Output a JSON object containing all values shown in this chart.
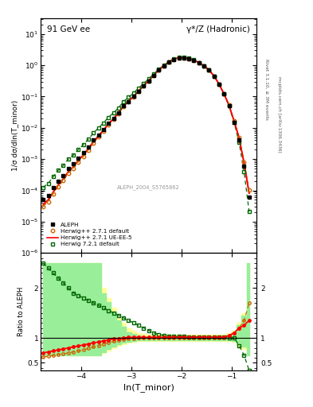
{
  "title_left": "91 GeV ee",
  "title_right": "γ*/Z (Hadronic)",
  "ylabel_main": "1/σ dσ/dln(T_minor)",
  "ylabel_ratio": "Ratio to ALEPH",
  "xlabel": "ln(T_​minor)",
  "right_label_top": "Rivet 3.1.10, ≥ 3M events",
  "right_label_bot": "mcplots.cern.ch [arXiv:1306.3436]",
  "ref_label": "ALEPH_2004_S5765862",
  "xlim": [
    -4.8,
    -0.5
  ],
  "ylim_main_log": [
    -6,
    1.5
  ],
  "ylim_ratio": [
    0.35,
    2.7
  ],
  "background_color": "#ffffff",
  "aleph_color": "#000000",
  "herwig_default_color": "#cc6600",
  "herwig_ueee5_color": "#ff0000",
  "herwig721_color": "#006600",
  "yellow_band_color": "#ffff99",
  "green_band_color": "#99ee99",
  "aleph_x": [
    -4.75,
    -4.65,
    -4.55,
    -4.45,
    -4.35,
    -4.25,
    -4.15,
    -4.05,
    -3.95,
    -3.85,
    -3.75,
    -3.65,
    -3.55,
    -3.45,
    -3.35,
    -3.25,
    -3.15,
    -3.05,
    -2.95,
    -2.85,
    -2.75,
    -2.65,
    -2.55,
    -2.45,
    -2.35,
    -2.25,
    -2.15,
    -2.05,
    -1.95,
    -1.85,
    -1.75,
    -1.65,
    -1.55,
    -1.45,
    -1.35,
    -1.25,
    -1.15,
    -1.05,
    -0.95,
    -0.85,
    -0.75,
    -0.65
  ],
  "aleph_y": [
    5e-05,
    7e-05,
    0.00012,
    0.0002,
    0.0003,
    0.0005,
    0.0007,
    0.0011,
    0.0016,
    0.0025,
    0.004,
    0.006,
    0.009,
    0.014,
    0.02,
    0.03,
    0.05,
    0.07,
    0.1,
    0.15,
    0.22,
    0.32,
    0.48,
    0.7,
    0.95,
    1.25,
    1.55,
    1.75,
    1.75,
    1.65,
    1.45,
    1.2,
    0.95,
    0.7,
    0.45,
    0.25,
    0.12,
    0.05,
    0.015,
    0.004,
    0.0006,
    6e-05
  ],
  "hd_ratio": [
    0.62,
    0.63,
    0.65,
    0.67,
    0.68,
    0.7,
    0.72,
    0.74,
    0.76,
    0.79,
    0.82,
    0.85,
    0.88,
    0.91,
    0.93,
    0.96,
    0.97,
    0.98,
    0.99,
    1.0,
    1.0,
    1.0,
    1.0,
    1.0,
    1.0,
    1.0,
    1.0,
    1.0,
    1.0,
    1.0,
    1.0,
    1.0,
    1.0,
    1.0,
    1.0,
    1.0,
    1.0,
    1.05,
    1.1,
    1.2,
    1.35,
    1.7
  ],
  "hueee5_ratio": [
    0.7,
    0.72,
    0.74,
    0.76,
    0.78,
    0.8,
    0.82,
    0.84,
    0.86,
    0.88,
    0.9,
    0.92,
    0.94,
    0.96,
    0.98,
    0.99,
    1.0,
    1.01,
    1.01,
    1.01,
    1.01,
    1.01,
    1.01,
    1.01,
    1.01,
    1.01,
    1.01,
    1.01,
    1.01,
    1.01,
    1.01,
    1.01,
    1.01,
    1.01,
    1.01,
    1.01,
    1.01,
    1.05,
    1.1,
    1.2,
    1.25,
    1.35
  ],
  "h721_ratio": [
    2.5,
    2.4,
    2.3,
    2.2,
    2.1,
    2.0,
    1.9,
    1.85,
    1.8,
    1.75,
    1.7,
    1.65,
    1.6,
    1.55,
    1.5,
    1.45,
    1.4,
    1.35,
    1.3,
    1.25,
    1.2,
    1.15,
    1.1,
    1.07,
    1.05,
    1.04,
    1.03,
    1.03,
    1.03,
    1.02,
    1.02,
    1.02,
    1.02,
    1.02,
    1.01,
    1.01,
    1.01,
    1.0,
    1.0,
    0.85,
    0.65,
    0.35
  ],
  "yellow_lo": [
    0.65,
    0.65,
    0.65,
    0.65,
    0.65,
    0.65,
    0.65,
    0.65,
    0.65,
    0.65,
    0.65,
    0.65,
    0.7,
    0.75,
    0.8,
    0.85,
    0.88,
    0.9,
    0.92,
    0.94,
    0.94,
    0.94,
    0.94,
    0.94,
    0.94,
    0.94,
    0.94,
    0.94,
    0.94,
    0.94,
    0.94,
    0.94,
    0.94,
    0.94,
    0.94,
    0.94,
    0.94,
    0.94,
    0.92,
    0.85,
    0.78,
    0.65
  ],
  "yellow_hi": [
    2.5,
    2.5,
    2.5,
    2.5,
    2.5,
    2.5,
    2.5,
    2.5,
    2.5,
    2.5,
    2.5,
    2.5,
    2.0,
    1.8,
    1.6,
    1.4,
    1.3,
    1.2,
    1.15,
    1.1,
    1.08,
    1.06,
    1.06,
    1.06,
    1.06,
    1.06,
    1.06,
    1.06,
    1.06,
    1.06,
    1.06,
    1.06,
    1.06,
    1.06,
    1.06,
    1.06,
    1.06,
    1.1,
    1.15,
    1.3,
    1.5,
    2.5
  ],
  "green_lo": [
    0.65,
    0.65,
    0.65,
    0.65,
    0.65,
    0.65,
    0.65,
    0.65,
    0.65,
    0.65,
    0.65,
    0.65,
    0.72,
    0.78,
    0.83,
    0.87,
    0.9,
    0.92,
    0.93,
    0.95,
    0.96,
    0.96,
    0.96,
    0.96,
    0.96,
    0.96,
    0.96,
    0.96,
    0.96,
    0.96,
    0.96,
    0.96,
    0.96,
    0.96,
    0.96,
    0.96,
    0.96,
    0.96,
    0.94,
    0.88,
    0.82,
    0.65
  ],
  "green_hi": [
    2.5,
    2.5,
    2.5,
    2.5,
    2.5,
    2.5,
    2.5,
    2.5,
    2.5,
    2.5,
    2.5,
    2.5,
    1.9,
    1.72,
    1.52,
    1.35,
    1.22,
    1.12,
    1.08,
    1.05,
    1.04,
    1.04,
    1.04,
    1.04,
    1.04,
    1.04,
    1.04,
    1.04,
    1.04,
    1.04,
    1.04,
    1.04,
    1.04,
    1.04,
    1.04,
    1.04,
    1.04,
    1.07,
    1.1,
    1.25,
    1.45,
    2.5
  ]
}
